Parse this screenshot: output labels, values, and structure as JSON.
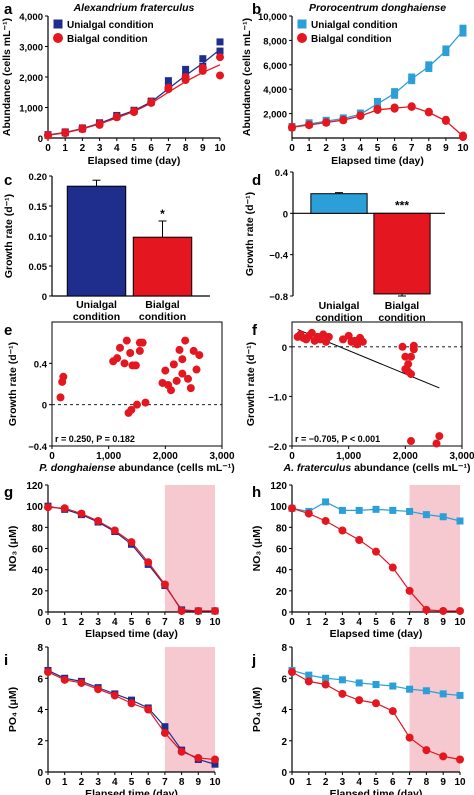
{
  "colors": {
    "af": "#1f2d8c",
    "pd": "#2b9fd8",
    "bi": "#e4161f",
    "shade": "#f6c8cf"
  },
  "legend": {
    "unialgal": "Unialgal condition",
    "bialgal": "Bialgal condition"
  },
  "chart_data": [
    {
      "panel": "a",
      "type": "scatter",
      "title": "Alexandrium fraterculus",
      "xlabel": "Elapsed time (day)",
      "ylabel": "Abundance (cells mL⁻¹)",
      "xlim": [
        0,
        10
      ],
      "ylim": [
        0,
        4000
      ],
      "xticks": [
        0,
        1,
        2,
        3,
        4,
        5,
        6,
        7,
        8,
        9,
        10
      ],
      "yticks": [
        0,
        1000,
        2000,
        3000,
        4000
      ],
      "yticklabels": [
        "0",
        "1,000",
        "2,000",
        "3,000",
        "4,000"
      ],
      "legend": "top-left",
      "series": [
        {
          "name": "Unialgal condition",
          "marker": "square",
          "x": [
            0,
            0,
            1,
            1,
            2,
            2,
            3,
            3,
            4,
            4,
            5,
            5,
            6,
            6,
            7,
            7,
            8,
            8,
            9,
            9,
            10,
            10
          ],
          "y": [
            90,
            110,
            170,
            200,
            300,
            330,
            470,
            500,
            700,
            740,
            880,
            910,
            1180,
            1210,
            1700,
            1880,
            2050,
            2250,
            2350,
            2600,
            2850,
            3150
          ],
          "fit_x": [
            0,
            1,
            2,
            3,
            4,
            5,
            6,
            7,
            8,
            9,
            10
          ],
          "fit_y": [
            100,
            180,
            310,
            480,
            700,
            900,
            1180,
            1620,
            2050,
            2450,
            2900
          ]
        },
        {
          "name": "Bialgal condition",
          "marker": "circle",
          "x": [
            0,
            0,
            1,
            1,
            2,
            2,
            3,
            3,
            4,
            4,
            5,
            5,
            6,
            6,
            7,
            7,
            8,
            8,
            9,
            9,
            10,
            10
          ],
          "y": [
            80,
            95,
            160,
            190,
            290,
            320,
            430,
            470,
            680,
            700,
            850,
            880,
            1150,
            1180,
            1600,
            1650,
            1900,
            2000,
            2200,
            2300,
            2050,
            2650
          ],
          "fit_x": [
            0,
            1,
            2,
            3,
            4,
            5,
            6,
            7,
            8,
            9,
            10
          ],
          "fit_y": [
            90,
            170,
            300,
            460,
            660,
            870,
            1140,
            1500,
            1850,
            2150,
            2400
          ]
        }
      ]
    },
    {
      "panel": "b",
      "type": "scatter",
      "title": "Prorocentrum donghaiense",
      "xlabel": "Elapsed time (day)",
      "ylabel": "Abundance (cells mL⁻¹)",
      "xlim": [
        0,
        10
      ],
      "ylim": [
        0,
        10000
      ],
      "xticks": [
        0,
        1,
        2,
        3,
        4,
        5,
        6,
        7,
        8,
        9,
        10
      ],
      "yticks": [
        2000,
        4000,
        6000,
        8000,
        10000
      ],
      "yticklabels": [
        "2,000",
        "4,000",
        "6,000",
        "8,000",
        "10,000"
      ],
      "legend": "top-left",
      "series": [
        {
          "name": "Unialgal condition",
          "marker": "square",
          "x": [
            0,
            0,
            1,
            1,
            2,
            2,
            3,
            3,
            4,
            4,
            5,
            5,
            6,
            6,
            7,
            7,
            8,
            8,
            9,
            9,
            10,
            10
          ],
          "y": [
            850,
            950,
            1100,
            1250,
            1300,
            1450,
            1500,
            1650,
            1900,
            2050,
            2700,
            3000,
            3500,
            3800,
            4700,
            5000,
            5700,
            6000,
            7000,
            7300,
            8600,
            9000
          ],
          "fit_x": [
            0,
            1,
            2,
            3,
            4,
            5,
            6,
            7,
            8,
            9,
            10
          ],
          "fit_y": [
            900,
            1150,
            1380,
            1600,
            1950,
            2800,
            3650,
            4850,
            5850,
            7150,
            8800
          ]
        },
        {
          "name": "Bialgal condition",
          "marker": "circle",
          "x": [
            0,
            0,
            1,
            1,
            2,
            2,
            3,
            3,
            4,
            4,
            5,
            5,
            6,
            6,
            7,
            7,
            8,
            8,
            9,
            9,
            10,
            10
          ],
          "y": [
            850,
            900,
            1050,
            1100,
            1250,
            1300,
            1450,
            1500,
            1800,
            1850,
            2300,
            2400,
            2400,
            2500,
            2550,
            2600,
            2100,
            2150,
            1400,
            1500,
            80,
            200
          ],
          "fit_x": [
            0,
            1,
            2,
            3,
            4,
            5,
            6,
            7,
            8,
            9,
            10
          ],
          "fit_y": [
            880,
            1070,
            1270,
            1470,
            1800,
            2300,
            2450,
            2570,
            2100,
            1400,
            150
          ]
        }
      ]
    },
    {
      "panel": "c",
      "type": "bar",
      "categories": [
        "Unialgal condition",
        "Bialgal condition"
      ],
      "values": [
        0.183,
        0.098
      ],
      "errors": [
        0.01,
        0.027
      ],
      "annotations": [
        "",
        "*"
      ],
      "ylabel": "Growth rate (d⁻¹)",
      "ylim": [
        0,
        0.2
      ],
      "yticks": [
        0,
        0.05,
        0.1,
        0.15,
        0.2
      ],
      "yticklabels": [
        "0",
        "0.05",
        "0.10",
        "0.15",
        "0.20"
      ]
    },
    {
      "panel": "d",
      "type": "bar",
      "categories": [
        "Unialgal condition",
        "Bialgal condition"
      ],
      "values": [
        0.19,
        -0.78
      ],
      "errors": [
        0.01,
        0.02
      ],
      "annotations": [
        "",
        "***"
      ],
      "ylabel": "Growth rate (d⁻¹)",
      "ylim": [
        -0.8,
        0.4
      ],
      "yticks": [
        -0.8,
        -0.4,
        0,
        0.4
      ],
      "yticklabels": [
        "−0.8",
        "−0.4",
        "0",
        "0.4"
      ]
    },
    {
      "panel": "e",
      "type": "scatter",
      "xlabel": "P. donghaiense abundance (cells mL⁻¹)",
      "ylabel": "Growth rate (d⁻¹)",
      "xlim": [
        0,
        3000
      ],
      "ylim": [
        -0.4,
        0.8
      ],
      "xticks": [
        0,
        1000,
        2000,
        3000
      ],
      "xticklabels": [
        "0",
        "1,000",
        "2,000",
        "3,000"
      ],
      "yticks": [
        -0.4,
        0,
        0.4
      ],
      "yticklabels": [
        "−0.4",
        "0",
        "0.4"
      ],
      "annotation": "r = 0.250, P = 0.182",
      "x": [
        150,
        180,
        200,
        1080,
        1150,
        1200,
        1280,
        1320,
        1350,
        1380,
        1400,
        1420,
        1480,
        1500,
        1550,
        1550,
        1600,
        1650,
        1950,
        2000,
        2050,
        2100,
        2150,
        2200,
        2250,
        2300,
        2300,
        2350,
        2400,
        2450,
        2500,
        2550,
        2600
      ],
      "y": [
        0.07,
        0.22,
        0.27,
        0.42,
        0.45,
        0.55,
        0.4,
        0.62,
        -0.08,
        0.5,
        -0.05,
        0.38,
        0.38,
        0.0,
        0.52,
        0.6,
        0.6,
        0.02,
        0.21,
        0.33,
        0.19,
        0.14,
        0.39,
        0.23,
        0.53,
        0.3,
        0.44,
        0.62,
        0.25,
        0.16,
        0.52,
        0.34,
        0.48
      ]
    },
    {
      "panel": "f",
      "type": "scatter",
      "xlabel": "A. fraterculus abundance (cells mL⁻¹)",
      "ylabel": "Growth rate (d⁻¹)",
      "xlim": [
        0,
        3000
      ],
      "ylim": [
        -2.0,
        0.5
      ],
      "xticks": [
        0,
        1000,
        2000,
        3000
      ],
      "xticklabels": [
        "0",
        "1,000",
        "2,000",
        "3,000"
      ],
      "yticks": [
        -2.0,
        -1.0,
        0
      ],
      "yticklabels": [
        "−2.0",
        "−1.0",
        "0"
      ],
      "annotation": "r = −0.705, P < 0.001",
      "x": [
        100,
        150,
        200,
        250,
        300,
        350,
        400,
        450,
        500,
        550,
        600,
        650,
        900,
        1000,
        1050,
        1100,
        1150,
        1200,
        1250,
        1950,
        2000,
        2000,
        2050,
        2050,
        2100,
        2100,
        2150,
        2150,
        2100,
        2550,
        2600
      ],
      "y": [
        0.2,
        0.25,
        0.18,
        0.15,
        0.22,
        0.28,
        0.12,
        0.2,
        0.15,
        0.25,
        0.1,
        0.2,
        0.15,
        0.22,
        0.1,
        0.12,
        0.05,
        0.18,
        0.1,
        0.0,
        -0.2,
        -0.45,
        -0.5,
        -0.35,
        -0.2,
        -0.55,
        -0.05,
        0.02,
        -1.9,
        -1.95,
        -1.8
      ],
      "fit_x": [
        100,
        2600
      ],
      "fit_y": [
        0.35,
        -0.83
      ]
    },
    {
      "panel": "g",
      "type": "line",
      "xlabel": "Elapsed time (day)",
      "ylabel": "NO₃ (μM)",
      "xlim": [
        0,
        10
      ],
      "ylim": [
        0,
        120
      ],
      "shade": [
        7,
        10
      ],
      "xticks": [
        0,
        1,
        2,
        3,
        4,
        5,
        6,
        7,
        8,
        9,
        10
      ],
      "yticks": [
        0,
        20,
        40,
        60,
        80,
        100,
        120
      ],
      "series": [
        {
          "name": "Unialgal condition",
          "marker": "square",
          "x": [
            0,
            1,
            2,
            3,
            4,
            5,
            6,
            7,
            8,
            9,
            10
          ],
          "y": [
            100,
            97,
            92,
            85,
            76,
            64,
            45,
            25,
            2,
            1,
            1
          ]
        },
        {
          "name": "Bialgal condition",
          "marker": "circle",
          "x": [
            0,
            1,
            2,
            3,
            4,
            5,
            6,
            7,
            8,
            9,
            10
          ],
          "y": [
            99,
            98,
            93,
            86,
            77,
            66,
            47,
            26,
            1,
            1,
            1
          ]
        }
      ]
    },
    {
      "panel": "h",
      "type": "line",
      "xlabel": "Elapsed time (day)",
      "ylabel": "NO₃ (μM)",
      "xlim": [
        0,
        10
      ],
      "ylim": [
        0,
        120
      ],
      "shade": [
        7,
        10
      ],
      "xticks": [
        0,
        1,
        2,
        3,
        4,
        5,
        6,
        7,
        8,
        9,
        10
      ],
      "yticks": [
        0,
        20,
        40,
        60,
        80,
        100,
        120
      ],
      "series": [
        {
          "name": "Unialgal condition",
          "marker": "square",
          "x": [
            0,
            1,
            2,
            3,
            4,
            5,
            6,
            7,
            8,
            9,
            10
          ],
          "y": [
            98,
            95,
            104,
            96,
            96,
            97,
            96,
            95,
            92,
            90,
            86
          ]
        },
        {
          "name": "Bialgal condition",
          "marker": "circle",
          "x": [
            0,
            1,
            2,
            3,
            4,
            5,
            6,
            7,
            8,
            9,
            10
          ],
          "y": [
            98,
            93,
            86,
            77,
            68,
            57,
            42,
            20,
            2,
            1,
            1
          ]
        }
      ]
    },
    {
      "panel": "i",
      "type": "line",
      "xlabel": "Elapsed time (day)",
      "ylabel": "PO₄ (μM)",
      "xlim": [
        0,
        10
      ],
      "ylim": [
        0,
        8
      ],
      "shade": [
        7,
        10
      ],
      "xticks": [
        0,
        1,
        2,
        3,
        4,
        5,
        6,
        7,
        8,
        9,
        10
      ],
      "yticks": [
        0,
        2,
        4,
        6,
        8
      ],
      "series": [
        {
          "name": "Unialgal condition",
          "marker": "square",
          "x": [
            0,
            1,
            2,
            3,
            4,
            5,
            6,
            7,
            8,
            9,
            10
          ],
          "y": [
            6.5,
            6.0,
            5.8,
            5.4,
            5.0,
            4.6,
            4.1,
            2.9,
            1.4,
            0.8,
            0.5
          ]
        },
        {
          "name": "Bialgal condition",
          "marker": "circle",
          "x": [
            0,
            1,
            2,
            3,
            4,
            5,
            6,
            7,
            8,
            9,
            10
          ],
          "y": [
            6.4,
            5.9,
            5.7,
            5.3,
            4.9,
            4.4,
            4.0,
            2.5,
            1.3,
            0.9,
            0.8
          ]
        }
      ]
    },
    {
      "panel": "j",
      "type": "line",
      "xlabel": "Elapsed time (day)",
      "ylabel": "PO₄ (μM)",
      "xlim": [
        0,
        10
      ],
      "ylim": [
        0,
        8
      ],
      "shade": [
        7,
        10
      ],
      "xticks": [
        0,
        1,
        2,
        3,
        4,
        5,
        6,
        7,
        8,
        9,
        10
      ],
      "yticks": [
        0,
        2,
        4,
        6,
        8
      ],
      "series": [
        {
          "name": "Unialgal condition",
          "marker": "square",
          "x": [
            0,
            1,
            2,
            3,
            4,
            5,
            6,
            7,
            8,
            9,
            10
          ],
          "y": [
            6.5,
            6.2,
            6.0,
            5.9,
            5.7,
            5.6,
            5.5,
            5.3,
            5.2,
            5.0,
            4.9
          ]
        },
        {
          "name": "Bialgal condition",
          "marker": "circle",
          "x": [
            0,
            1,
            2,
            3,
            4,
            5,
            6,
            7,
            8,
            9,
            10
          ],
          "y": [
            6.4,
            5.8,
            5.6,
            5.0,
            4.6,
            4.4,
            3.9,
            2.2,
            1.4,
            1.0,
            0.8
          ]
        }
      ]
    }
  ]
}
